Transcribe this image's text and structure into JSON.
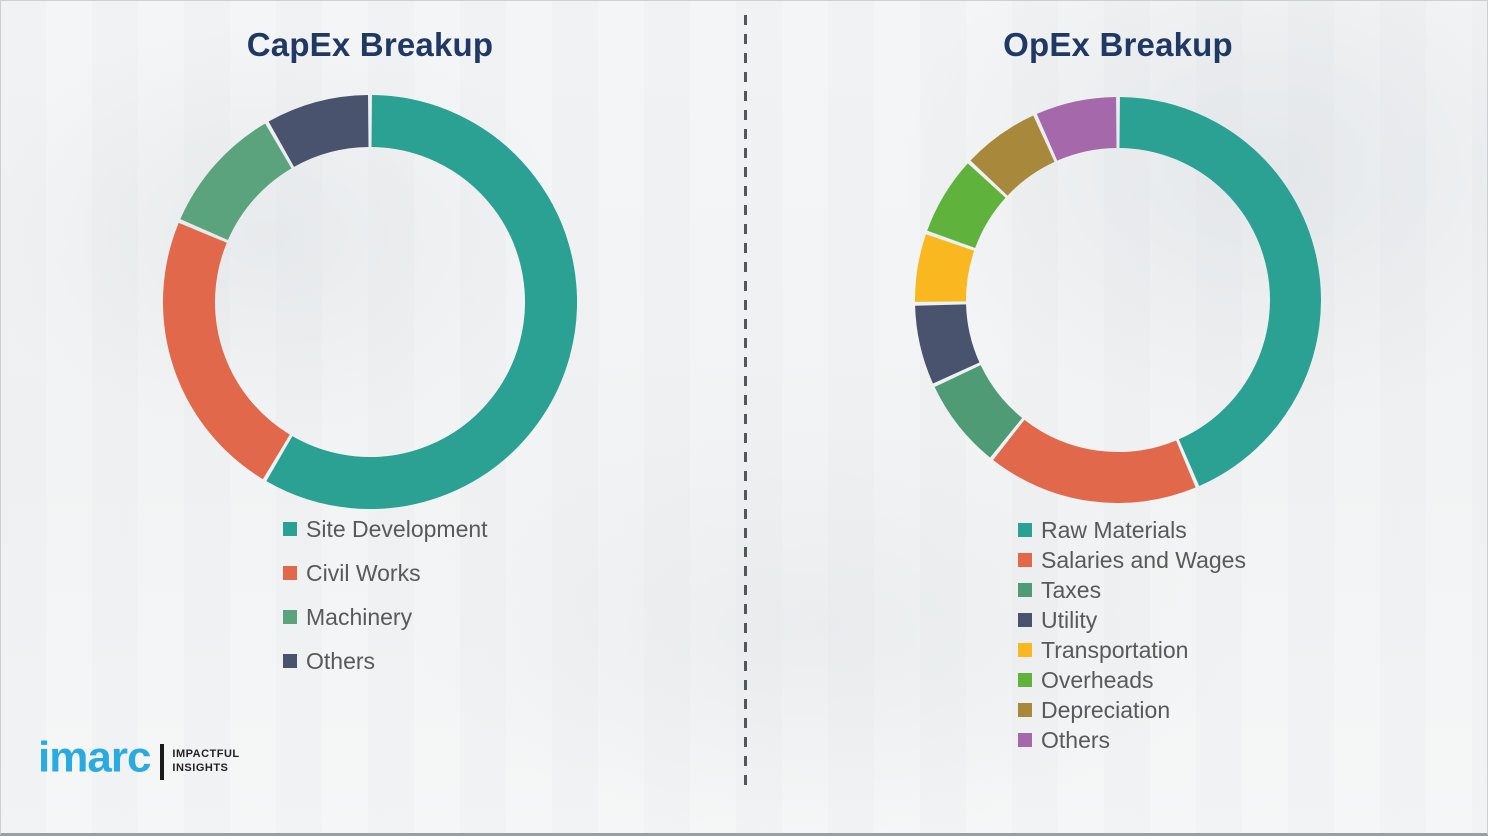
{
  "branding": {
    "logo_text": "imarc",
    "tagline_line1": "IMPACTFUL",
    "tagline_line2": "INSIGHTS",
    "logo_color": "#29ABE2"
  },
  "colors": {
    "title_text": "#1F3864",
    "legend_text": "#595959",
    "divider": "#53565A"
  },
  "chart_data": [
    {
      "type": "pie",
      "subtype": "donut",
      "title": "CapEx Breakup",
      "direction": "clockwise",
      "start_angle_deg": 0,
      "legend_position": "below-left",
      "segments": [
        {
          "label": "Site Development",
          "value_pct": 58.5,
          "color": "#2AA193"
        },
        {
          "label": "Civil Works",
          "value_pct": 22.9,
          "color": "#E2684B"
        },
        {
          "label": "Machinery",
          "value_pct": 10.3,
          "color": "#5BA37D"
        },
        {
          "label": "Others",
          "value_pct": 8.3,
          "color": "#4A536E"
        }
      ]
    },
    {
      "type": "pie",
      "subtype": "donut",
      "title": "OpEx Breakup",
      "direction": "clockwise",
      "start_angle_deg": 0,
      "legend_position": "below-left",
      "segments": [
        {
          "label": "Raw Materials",
          "value_pct": 43.6,
          "color": "#2AA193"
        },
        {
          "label": "Salaries and Wages",
          "value_pct": 17.1,
          "color": "#E2684B"
        },
        {
          "label": "Taxes",
          "value_pct": 7.4,
          "color": "#4F9B76"
        },
        {
          "label": "Utility",
          "value_pct": 6.6,
          "color": "#4A536E"
        },
        {
          "label": "Transportation",
          "value_pct": 5.7,
          "color": "#F9B81F"
        },
        {
          "label": "Overheads",
          "value_pct": 6.5,
          "color": "#5FB33C"
        },
        {
          "label": "Depreciation",
          "value_pct": 6.4,
          "color": "#A8893C"
        },
        {
          "label": "Others",
          "value_pct": 6.7,
          "color": "#A569AB"
        }
      ]
    }
  ]
}
